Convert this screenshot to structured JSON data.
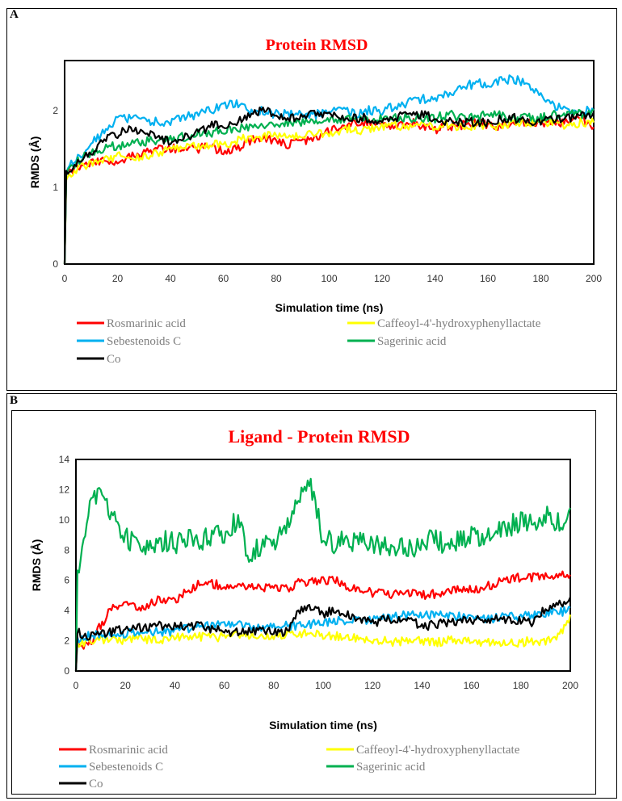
{
  "colors": {
    "Rosmarinic acid": "#ff0000",
    "Caffeoyl-4'-hydroxyphenyllactate": "#ffff00",
    "Sebestenoids C": "#00b0f0",
    "Sagerinic acid": "#00b050",
    "Co": "#000000"
  },
  "chart_data": [
    {
      "panel": "A",
      "type": "line",
      "title": "Protein RMSD",
      "xlabel": "Simulation time (ns)",
      "ylabel": "RMDS (Å)",
      "xlim": [
        0,
        200
      ],
      "ylim": [
        0,
        2.65
      ],
      "xticks": [
        0,
        20,
        40,
        60,
        80,
        100,
        120,
        140,
        160,
        180,
        200
      ],
      "yticks": [
        0,
        1,
        2
      ],
      "legend": [
        "Rosmarinic acid",
        "Caffeoyl-4'-hydroxyphenyllactate",
        "Sebestenoids C",
        "Sagerinic acid",
        "Co"
      ],
      "series": [
        {
          "name": "Rosmarinic acid",
          "x": [
            0,
            5,
            10,
            15,
            20,
            25,
            30,
            35,
            40,
            45,
            50,
            55,
            60,
            65,
            70,
            75,
            80,
            85,
            90,
            95,
            100,
            105,
            110,
            115,
            120,
            125,
            130,
            135,
            140,
            145,
            150,
            155,
            160,
            165,
            170,
            175,
            180,
            185,
            190,
            195,
            200
          ],
          "values": [
            1.2,
            1.25,
            1.3,
            1.35,
            1.35,
            1.4,
            1.45,
            1.5,
            1.5,
            1.5,
            1.5,
            1.55,
            1.45,
            1.5,
            1.6,
            1.65,
            1.6,
            1.55,
            1.6,
            1.65,
            1.75,
            1.8,
            1.85,
            1.85,
            1.8,
            1.8,
            1.85,
            1.8,
            1.75,
            1.8,
            1.8,
            1.85,
            1.8,
            1.8,
            1.85,
            1.85,
            1.85,
            1.85,
            1.85,
            1.9,
            1.8
          ]
        },
        {
          "name": "Caffeoyl-4'-hydroxyphenyllactate",
          "x": [
            0,
            5,
            10,
            15,
            20,
            25,
            30,
            35,
            40,
            45,
            50,
            55,
            60,
            65,
            70,
            75,
            80,
            85,
            90,
            95,
            100,
            105,
            110,
            115,
            120,
            125,
            130,
            135,
            140,
            145,
            150,
            155,
            160,
            165,
            170,
            175,
            180,
            185,
            190,
            195,
            200
          ],
          "values": [
            1.1,
            1.25,
            1.3,
            1.35,
            1.4,
            1.4,
            1.4,
            1.45,
            1.5,
            1.5,
            1.55,
            1.55,
            1.55,
            1.6,
            1.65,
            1.65,
            1.7,
            1.65,
            1.7,
            1.7,
            1.7,
            1.75,
            1.75,
            1.75,
            1.8,
            1.8,
            1.8,
            1.8,
            1.8,
            1.8,
            1.8,
            1.8,
            1.8,
            1.8,
            1.85,
            1.85,
            1.85,
            1.85,
            1.8,
            1.85,
            1.85
          ]
        },
        {
          "name": "Sebestenoids C",
          "x": [
            0,
            5,
            10,
            15,
            20,
            25,
            30,
            35,
            40,
            45,
            50,
            55,
            60,
            65,
            70,
            75,
            80,
            85,
            90,
            95,
            100,
            105,
            110,
            115,
            120,
            125,
            130,
            135,
            140,
            145,
            150,
            155,
            160,
            165,
            170,
            175,
            180,
            185,
            190,
            195,
            200
          ],
          "values": [
            1.2,
            1.4,
            1.55,
            1.75,
            1.9,
            1.9,
            1.85,
            1.85,
            1.85,
            1.9,
            1.95,
            2.0,
            2.05,
            2.1,
            2.0,
            2.0,
            1.95,
            1.95,
            1.95,
            1.95,
            2.0,
            2.0,
            1.95,
            2.0,
            2.0,
            2.05,
            2.1,
            2.15,
            2.15,
            2.2,
            2.3,
            2.35,
            2.35,
            2.4,
            2.4,
            2.35,
            2.2,
            2.05,
            2.0,
            2.0,
            2.0
          ]
        },
        {
          "name": "Sagerinic acid",
          "x": [
            0,
            5,
            10,
            15,
            20,
            25,
            30,
            35,
            40,
            45,
            50,
            55,
            60,
            65,
            70,
            75,
            80,
            85,
            90,
            95,
            100,
            105,
            110,
            115,
            120,
            125,
            130,
            135,
            140,
            145,
            150,
            155,
            160,
            165,
            170,
            175,
            180,
            185,
            190,
            195,
            200
          ],
          "values": [
            1.2,
            1.35,
            1.45,
            1.5,
            1.55,
            1.55,
            1.6,
            1.6,
            1.65,
            1.65,
            1.7,
            1.7,
            1.75,
            1.75,
            1.8,
            1.8,
            1.8,
            1.85,
            1.85,
            1.85,
            1.85,
            1.9,
            1.9,
            1.9,
            1.9,
            1.9,
            1.9,
            1.9,
            1.9,
            1.95,
            1.9,
            1.9,
            1.95,
            1.95,
            1.9,
            1.9,
            1.9,
            1.95,
            1.95,
            1.95,
            2.0
          ]
        },
        {
          "name": "Co",
          "x": [
            0,
            5,
            10,
            15,
            20,
            25,
            30,
            35,
            40,
            45,
            50,
            55,
            60,
            65,
            70,
            75,
            80,
            85,
            90,
            95,
            100,
            105,
            110,
            115,
            120,
            125,
            130,
            135,
            140,
            145,
            150,
            155,
            160,
            165,
            170,
            175,
            180,
            185,
            190,
            195,
            200
          ],
          "values": [
            1.15,
            1.3,
            1.45,
            1.6,
            1.7,
            1.75,
            1.75,
            1.65,
            1.6,
            1.65,
            1.7,
            1.8,
            1.8,
            1.85,
            1.95,
            2.0,
            1.95,
            1.9,
            1.95,
            1.95,
            1.95,
            1.9,
            1.9,
            1.9,
            1.85,
            1.9,
            1.95,
            1.95,
            1.9,
            1.85,
            1.85,
            1.85,
            1.85,
            1.9,
            1.9,
            1.85,
            1.85,
            1.9,
            1.9,
            1.95,
            1.95
          ]
        }
      ]
    },
    {
      "panel": "B",
      "type": "line",
      "title": "Ligand - Protein RMSD",
      "xlabel": "Simulation time (ns)",
      "ylabel": "RMDS (Å)",
      "xlim": [
        0,
        200
      ],
      "ylim": [
        0,
        14
      ],
      "xticks": [
        0,
        20,
        40,
        60,
        80,
        100,
        120,
        140,
        160,
        180,
        200
      ],
      "yticks": [
        0,
        2,
        4,
        6,
        8,
        10,
        12,
        14
      ],
      "legend": [
        "Rosmarinic acid",
        "Caffeoyl-4'-hydroxyphenyllactate",
        "Sebestenoids C",
        "Sagerinic acid",
        "Co"
      ],
      "series": [
        {
          "name": "Rosmarinic acid",
          "x": [
            0,
            5,
            10,
            15,
            20,
            25,
            30,
            35,
            40,
            45,
            50,
            55,
            60,
            65,
            70,
            75,
            80,
            85,
            90,
            95,
            100,
            105,
            110,
            115,
            120,
            125,
            130,
            135,
            140,
            145,
            150,
            155,
            160,
            165,
            170,
            175,
            180,
            185,
            190,
            195,
            200
          ],
          "values": [
            2.0,
            1.6,
            3.0,
            4.3,
            4.5,
            4.2,
            4.4,
            4.8,
            4.6,
            5.3,
            5.8,
            5.8,
            5.6,
            5.8,
            5.6,
            5.5,
            5.5,
            5.4,
            5.8,
            5.9,
            6.0,
            6.1,
            5.5,
            5.3,
            5.2,
            5.1,
            5.1,
            5.2,
            5.0,
            5.1,
            5.3,
            5.4,
            5.4,
            5.5,
            5.8,
            6.1,
            6.2,
            6.2,
            6.2,
            6.3,
            6.3
          ]
        },
        {
          "name": "Caffeoyl-4'-hydroxyphenyllactate",
          "x": [
            0,
            5,
            10,
            15,
            20,
            25,
            30,
            35,
            40,
            45,
            50,
            55,
            60,
            65,
            70,
            75,
            80,
            85,
            90,
            95,
            100,
            105,
            110,
            115,
            120,
            125,
            130,
            135,
            140,
            145,
            150,
            155,
            160,
            165,
            170,
            175,
            180,
            185,
            190,
            195,
            200
          ],
          "values": [
            1.8,
            1.9,
            2.0,
            2.0,
            2.1,
            2.2,
            2.1,
            2.1,
            2.2,
            2.2,
            2.3,
            2.2,
            2.3,
            2.4,
            2.3,
            2.3,
            2.3,
            2.4,
            2.4,
            2.6,
            2.4,
            2.3,
            2.2,
            2.2,
            2.0,
            2.0,
            1.9,
            2.0,
            2.0,
            1.9,
            2.0,
            2.0,
            1.9,
            1.9,
            1.9,
            1.9,
            1.9,
            2.0,
            2.0,
            2.3,
            3.6
          ]
        },
        {
          "name": "Sebestenoids C",
          "x": [
            0,
            5,
            10,
            15,
            20,
            25,
            30,
            35,
            40,
            45,
            50,
            55,
            60,
            65,
            70,
            75,
            80,
            85,
            90,
            95,
            100,
            105,
            110,
            115,
            120,
            125,
            130,
            135,
            140,
            145,
            150,
            155,
            160,
            165,
            170,
            175,
            180,
            185,
            190,
            195,
            200
          ],
          "values": [
            2.1,
            2.3,
            2.4,
            2.5,
            2.5,
            2.6,
            2.6,
            2.6,
            2.6,
            2.8,
            2.9,
            3.0,
            3.0,
            3.1,
            3.0,
            2.9,
            2.9,
            3.0,
            3.0,
            3.1,
            3.2,
            3.3,
            3.4,
            3.4,
            3.4,
            3.5,
            3.6,
            3.8,
            3.8,
            3.7,
            3.6,
            3.6,
            3.5,
            3.5,
            3.5,
            3.6,
            3.6,
            3.7,
            3.8,
            3.9,
            4.0
          ]
        },
        {
          "name": "Sagerinic acid",
          "x": [
            0,
            5,
            10,
            15,
            20,
            25,
            30,
            35,
            40,
            45,
            50,
            55,
            60,
            65,
            70,
            75,
            80,
            85,
            90,
            95,
            100,
            105,
            110,
            115,
            120,
            125,
            130,
            135,
            140,
            145,
            150,
            155,
            160,
            165,
            170,
            175,
            180,
            185,
            190,
            195,
            200
          ],
          "values": [
            6.0,
            10.8,
            11.8,
            10.2,
            8.8,
            8.4,
            8.2,
            8.6,
            8.4,
            8.8,
            8.6,
            8.8,
            9.0,
            10.0,
            7.6,
            8.2,
            8.6,
            9.2,
            11.8,
            12.4,
            8.8,
            8.4,
            8.6,
            8.8,
            8.4,
            8.2,
            8.4,
            8.0,
            8.8,
            8.6,
            8.4,
            8.6,
            8.8,
            9.0,
            9.4,
            9.6,
            9.8,
            10.0,
            10.2,
            10.0,
            10.2
          ]
        },
        {
          "name": "Co",
          "x": [
            0,
            5,
            10,
            15,
            20,
            25,
            30,
            35,
            40,
            45,
            50,
            55,
            60,
            65,
            70,
            75,
            80,
            85,
            90,
            95,
            100,
            105,
            110,
            115,
            120,
            125,
            130,
            135,
            140,
            145,
            150,
            155,
            160,
            165,
            170,
            175,
            180,
            185,
            190,
            195,
            200
          ],
          "values": [
            2.6,
            2.2,
            2.5,
            2.6,
            2.8,
            2.9,
            2.9,
            3.0,
            3.0,
            3.0,
            3.0,
            2.8,
            2.6,
            2.6,
            2.7,
            2.6,
            2.6,
            2.6,
            4.0,
            4.1,
            3.8,
            4.0,
            3.7,
            3.3,
            3.2,
            3.4,
            3.5,
            3.4,
            2.9,
            3.1,
            3.2,
            3.3,
            3.4,
            3.3,
            3.5,
            3.4,
            3.3,
            3.2,
            4.2,
            4.5,
            4.6
          ]
        }
      ]
    }
  ]
}
